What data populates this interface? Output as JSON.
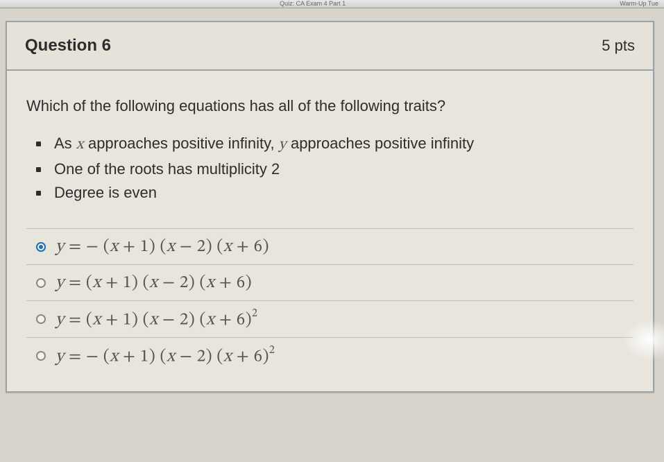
{
  "topbar": {
    "left": "",
    "center": "Quiz: CA Exam 4 Part 1",
    "right": "Warm-Up Tue"
  },
  "question": {
    "title": "Question 6",
    "points": "5 pts",
    "prompt": "Which of the following equations has all of the following traits?",
    "traits": [
      "As x approaches positive infinity, y approaches positive infinity",
      "One of the roots has multiplicity 2",
      "Degree is even"
    ],
    "choices": [
      {
        "id": "a",
        "selected": true,
        "neg": true,
        "sq": false
      },
      {
        "id": "b",
        "selected": false,
        "neg": false,
        "sq": false
      },
      {
        "id": "c",
        "selected": false,
        "neg": false,
        "sq": true
      },
      {
        "id": "d",
        "selected": false,
        "neg": true,
        "sq": true
      }
    ],
    "equation_parts": {
      "y_eq": "y = ",
      "minus": "− ",
      "f1_open": "(",
      "f1_var": "x",
      "f1_rest": " + 1)",
      "f2_open": " (",
      "f2_var": "x",
      "f2_rest": " − 2)",
      "f3_open": " (",
      "f3_var": "x",
      "f3_rest": " + 6)",
      "sq": "2"
    }
  },
  "style": {
    "selected_color": "#1a6fb5",
    "text_color": "#2d2d2d",
    "eq_color": "#565650"
  }
}
